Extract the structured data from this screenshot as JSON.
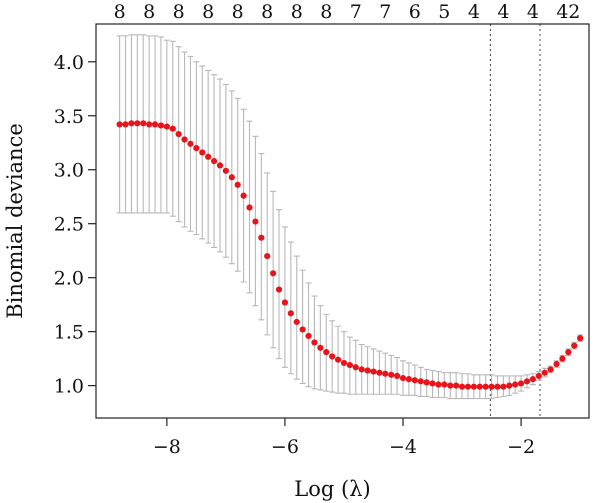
{
  "chart_data": {
    "type": "scatter",
    "xlabel": "Log (λ)",
    "ylabel": "Binomial deviance",
    "xlim": [
      -9.2,
      -0.85
    ],
    "ylim": [
      0.7,
      4.35
    ],
    "x_ticks": [
      -8,
      -6,
      -4,
      -2
    ],
    "x_tick_labels": [
      "−8",
      "−6",
      "−4",
      "−2"
    ],
    "y_ticks": [
      1.0,
      1.5,
      2.0,
      2.5,
      3.0,
      3.5,
      4.0
    ],
    "y_tick_labels": [
      "1.0",
      "1.5",
      "2.0",
      "2.5",
      "3.0",
      "3.5",
      "4.0"
    ],
    "top_axis": {
      "positions": [
        -8.8,
        -8.3,
        -7.8,
        -7.3,
        -6.8,
        -6.3,
        -5.8,
        -5.3,
        -4.8,
        -4.3,
        -3.8,
        -3.3,
        -2.8,
        -2.3,
        -1.8,
        -1.3
      ],
      "labels": [
        "8",
        "8",
        "8",
        "8",
        "8",
        "8",
        "8",
        "8",
        "7",
        "7",
        "6",
        "5",
        "4",
        "4",
        "4",
        "4"
      ],
      "end_label": {
        "x": -1.1,
        "text": "2"
      }
    },
    "reference_lines": [
      -2.52,
      -1.68
    ],
    "series": [
      {
        "color": "#e8141c",
        "error_color": "#b8b8b8",
        "x": [
          -8.8,
          -8.7,
          -8.6,
          -8.5,
          -8.4,
          -8.3,
          -8.2,
          -8.1,
          -8.0,
          -7.9,
          -7.8,
          -7.7,
          -7.6,
          -7.5,
          -7.4,
          -7.3,
          -7.2,
          -7.1,
          -7.0,
          -6.9,
          -6.8,
          -6.7,
          -6.6,
          -6.5,
          -6.4,
          -6.3,
          -6.2,
          -6.1,
          -6.0,
          -5.9,
          -5.8,
          -5.7,
          -5.6,
          -5.5,
          -5.4,
          -5.3,
          -5.2,
          -5.1,
          -5.0,
          -4.9,
          -4.8,
          -4.7,
          -4.6,
          -4.5,
          -4.4,
          -4.3,
          -4.2,
          -4.1,
          -4.0,
          -3.9,
          -3.8,
          -3.7,
          -3.6,
          -3.5,
          -3.4,
          -3.3,
          -3.2,
          -3.1,
          -3.0,
          -2.9,
          -2.8,
          -2.7,
          -2.6,
          -2.5,
          -2.4,
          -2.3,
          -2.2,
          -2.1,
          -2.0,
          -1.9,
          -1.8,
          -1.7,
          -1.6,
          -1.5,
          -1.4,
          -1.3,
          -1.2,
          -1.1,
          -1.0
        ],
        "y": [
          3.42,
          3.42,
          3.43,
          3.43,
          3.43,
          3.42,
          3.42,
          3.41,
          3.4,
          3.38,
          3.33,
          3.28,
          3.24,
          3.2,
          3.16,
          3.12,
          3.08,
          3.04,
          2.99,
          2.93,
          2.86,
          2.76,
          2.65,
          2.52,
          2.37,
          2.2,
          2.04,
          1.89,
          1.77,
          1.67,
          1.59,
          1.52,
          1.46,
          1.4,
          1.35,
          1.31,
          1.27,
          1.24,
          1.21,
          1.19,
          1.17,
          1.15,
          1.14,
          1.13,
          1.12,
          1.11,
          1.1,
          1.09,
          1.07,
          1.06,
          1.05,
          1.04,
          1.03,
          1.02,
          1.01,
          1.01,
          1.0,
          1.0,
          0.99,
          0.99,
          0.99,
          0.99,
          0.99,
          0.99,
          0.99,
          0.99,
          1.0,
          1.01,
          1.02,
          1.04,
          1.06,
          1.09,
          1.12,
          1.15,
          1.2,
          1.25,
          1.31,
          1.37,
          1.44
        ],
        "err_lo": [
          2.6,
          2.6,
          2.6,
          2.6,
          2.6,
          2.6,
          2.6,
          2.6,
          2.6,
          2.57,
          2.52,
          2.47,
          2.43,
          2.4,
          2.36,
          2.32,
          2.28,
          2.24,
          2.19,
          2.13,
          2.06,
          1.96,
          1.86,
          1.74,
          1.61,
          1.47,
          1.35,
          1.25,
          1.17,
          1.11,
          1.06,
          1.02,
          0.99,
          0.97,
          0.96,
          0.95,
          0.94,
          0.93,
          0.93,
          0.92,
          0.92,
          0.92,
          0.92,
          0.92,
          0.92,
          0.92,
          0.92,
          0.92,
          0.91,
          0.91,
          0.91,
          0.9,
          0.9,
          0.89,
          0.89,
          0.89,
          0.88,
          0.88,
          0.88,
          0.88,
          0.88,
          0.88,
          0.88,
          0.88,
          0.89,
          0.9,
          0.91,
          0.93,
          0.95,
          0.98,
          1.01,
          1.05,
          1.08,
          1.12,
          1.17,
          1.22,
          1.28,
          1.34,
          1.41
        ],
        "err_hi": [
          4.24,
          4.24,
          4.25,
          4.25,
          4.25,
          4.24,
          4.24,
          4.23,
          4.2,
          4.19,
          4.14,
          4.09,
          4.05,
          4.0,
          3.96,
          3.92,
          3.88,
          3.84,
          3.79,
          3.73,
          3.66,
          3.56,
          3.45,
          3.31,
          3.15,
          2.97,
          2.8,
          2.63,
          2.47,
          2.33,
          2.2,
          2.07,
          1.95,
          1.83,
          1.74,
          1.66,
          1.6,
          1.55,
          1.5,
          1.45,
          1.42,
          1.38,
          1.36,
          1.34,
          1.32,
          1.3,
          1.28,
          1.26,
          1.23,
          1.21,
          1.19,
          1.17,
          1.15,
          1.14,
          1.13,
          1.12,
          1.12,
          1.12,
          1.11,
          1.11,
          1.1,
          1.1,
          1.1,
          1.1,
          1.09,
          1.09,
          1.09,
          1.09,
          1.09,
          1.1,
          1.11,
          1.13,
          1.16,
          1.18,
          1.23,
          1.28,
          1.34,
          1.4,
          1.47
        ]
      }
    ]
  }
}
